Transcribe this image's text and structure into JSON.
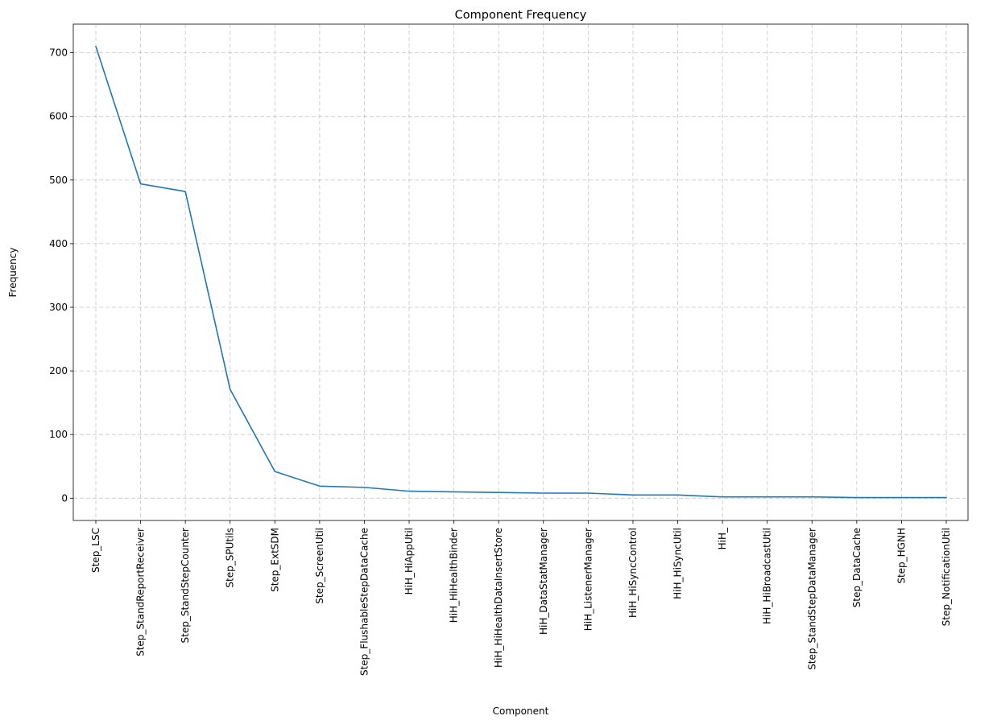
{
  "chart_data": {
    "type": "line",
    "title": "Component Frequency",
    "xlabel": "Component",
    "ylabel": "Frequency",
    "ylim": [
      -35,
      745
    ],
    "yticks": [
      0,
      100,
      200,
      300,
      400,
      500,
      600,
      700
    ],
    "grid": true,
    "grid_style": "dashed",
    "line_color": "#1f77b4",
    "categories": [
      "Step_LSC",
      "Step_StandReportReceiver",
      "Step_StandStepCounter",
      "Step_SPUtils",
      "Step_ExtSDM",
      "Step_ScreenUtil",
      "Step_FlushableStepDataCache",
      "HiH_HiAppUtil",
      "HiH_HiHealthBinder",
      "HiH_HiHealthDataInsertStore",
      "HiH_DataStatManager",
      "HiH_ListenerManager",
      "HiH_HiSyncControl",
      "HiH_HiSyncUtil",
      "HiH_",
      "HiH_HiBroadcastUtil",
      "Step_StandStepDataManager",
      "Step_DataCache",
      "Step_HGNH",
      "Step_NotificationUtil"
    ],
    "values": [
      710,
      494,
      482,
      171,
      42,
      19,
      17,
      11,
      10,
      9,
      8,
      8,
      5,
      5,
      2,
      2,
      2,
      1,
      1,
      1
    ]
  }
}
